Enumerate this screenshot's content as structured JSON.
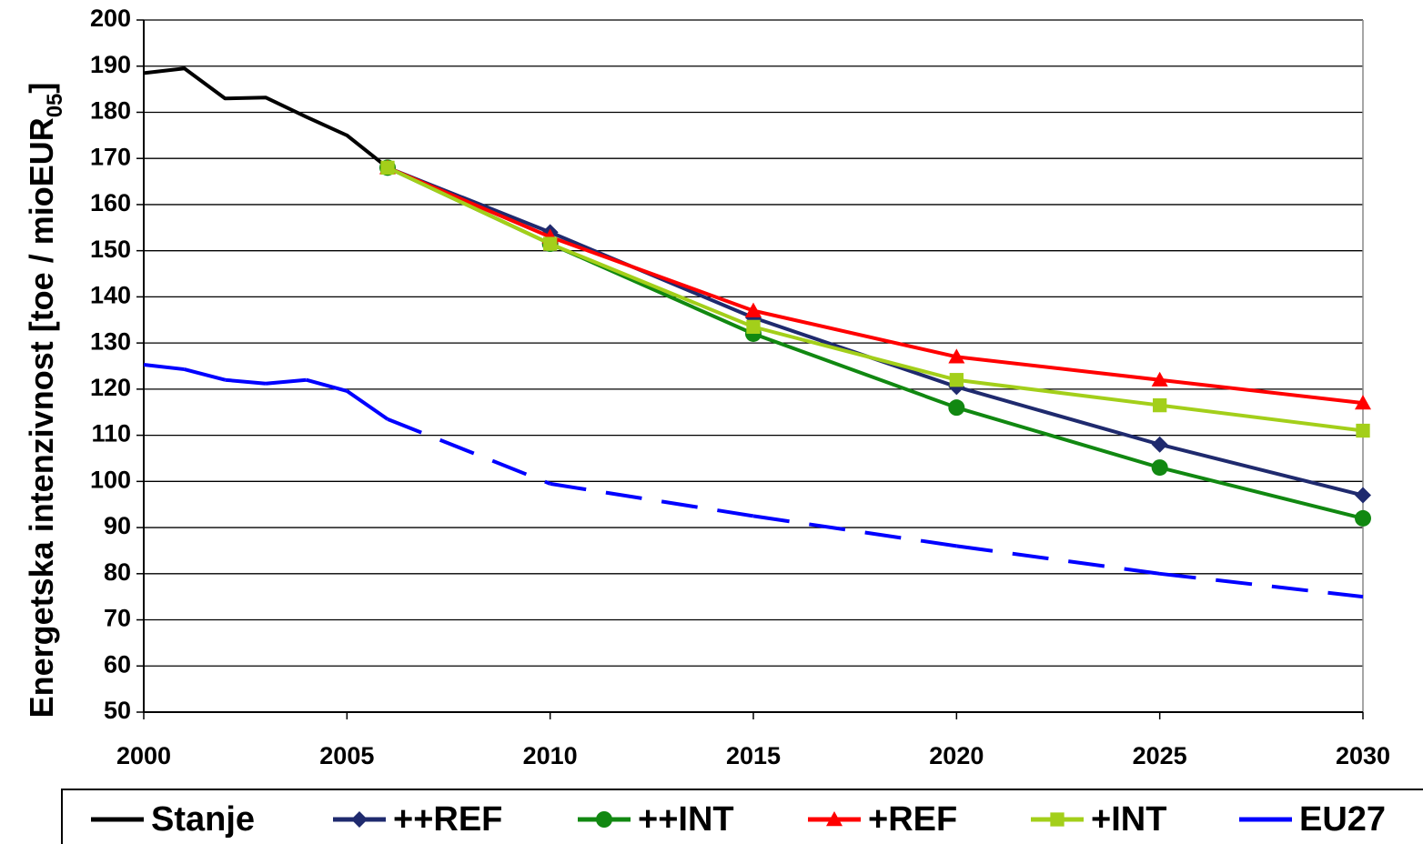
{
  "chart_data": {
    "type": "line",
    "ylabel": {
      "text": "Energetska intenzivnost [toe / mioEUR",
      "sub": "05",
      "end": "]"
    },
    "xlim": [
      2000,
      2030
    ],
    "xticks": [
      2000,
      2005,
      2010,
      2015,
      2020,
      2025,
      2030
    ],
    "ylim": [
      50,
      200
    ],
    "yticks": [
      50,
      60,
      70,
      80,
      90,
      100,
      110,
      120,
      130,
      140,
      150,
      160,
      170,
      180,
      190,
      200
    ],
    "grid": true,
    "legend": "bottom",
    "series": [
      {
        "name": "Stanje",
        "color": "#000000",
        "x": [
          2000,
          2001,
          2002,
          2003,
          2004,
          2005,
          2006
        ],
        "values": [
          188.5,
          189.5,
          183,
          183.2,
          179,
          175,
          168
        ]
      },
      {
        "name": "++REF",
        "color": "#1f2a6e",
        "marker": "diamond",
        "x": [
          2006,
          2010,
          2015,
          2020,
          2025,
          2030
        ],
        "values": [
          168,
          154,
          135.5,
          120.5,
          108,
          97
        ]
      },
      {
        "name": "++INT",
        "color": "#118811",
        "marker": "circle",
        "x": [
          2006,
          2010,
          2015,
          2020,
          2025,
          2030
        ],
        "values": [
          168,
          151.5,
          132,
          116,
          103,
          92
        ]
      },
      {
        "name": "+REF",
        "color": "#ff0000",
        "marker": "triangle",
        "x": [
          2006,
          2010,
          2015,
          2020,
          2025,
          2030
        ],
        "values": [
          168,
          153,
          137,
          127,
          122,
          117
        ]
      },
      {
        "name": "+INT",
        "color": "#a3cf1a",
        "marker": "square",
        "x": [
          2006,
          2010,
          2015,
          2020,
          2025,
          2030
        ],
        "values": [
          168,
          151.5,
          133.5,
          122,
          116.5,
          111
        ]
      },
      {
        "name": "EU27",
        "color": "#0000ff",
        "dash_from": 2006,
        "x": [
          2000,
          2001,
          2002,
          2003,
          2004,
          2005,
          2006,
          2010,
          2015,
          2020,
          2025,
          2030
        ],
        "values": [
          125.3,
          124.3,
          122,
          121.2,
          122,
          119.6,
          113.5,
          99.5,
          92.5,
          86,
          80,
          75
        ]
      }
    ]
  }
}
